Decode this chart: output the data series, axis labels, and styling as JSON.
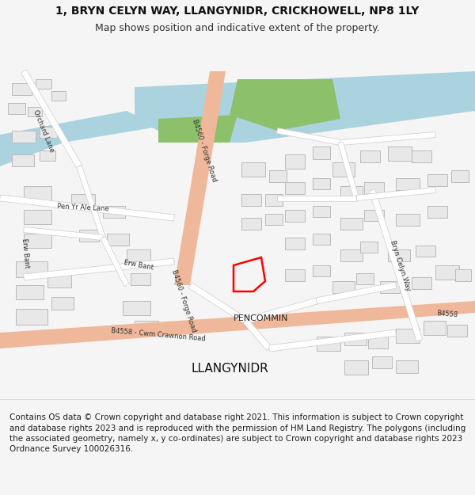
{
  "title_line1": "1, BRYN CELYN WAY, LLANGYNIDR, CRICKHOWELL, NP8 1LY",
  "title_line2": "Map shows position and indicative extent of the property.",
  "footer_text": "Contains OS data © Crown copyright and database right 2021. This information is subject to Crown copyright and database rights 2023 and is reproduced with the permission of HM Land Registry. The polygons (including the associated geometry, namely x, y co-ordinates) are subject to Crown copyright and database rights 2023 Ordnance Survey 100026316.",
  "background_color": "#f5f5f5",
  "map_bg": "#f8f8f8",
  "header_bg": "#ffffff",
  "footer_bg": "#ffffff",
  "title_fontsize": 10,
  "subtitle_fontsize": 9,
  "footer_fontsize": 7.5,
  "road_main_color": "#f0b89a",
  "road_minor_color": "#ffffff",
  "road_minor_stroke": "#cccccc",
  "building_fill": "#e8e8e8",
  "building_edge": "#bbbbbb",
  "water_color": "#aad3df",
  "green_color": "#8dc06a",
  "property_color": "#ff0000",
  "text_color": "#333333",
  "label_color": "#444444"
}
